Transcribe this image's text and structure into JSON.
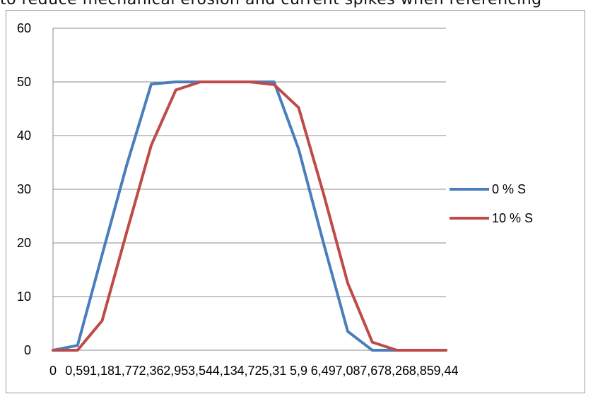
{
  "top_text": "to reduce mechanical erosion and current spikes when referencing",
  "chart_data": {
    "type": "line",
    "title": "",
    "xlabel": "",
    "ylabel": "",
    "ylim": [
      0,
      60
    ],
    "yticks": [
      0,
      10,
      20,
      30,
      40,
      50,
      60
    ],
    "grid": true,
    "legend_position": "right",
    "x_tick_labels": [
      "0",
      "0,59",
      "1,18",
      "1,77",
      "2,36",
      "2,95",
      "3,54",
      "4,13",
      "4,72",
      "5,31",
      "5,9",
      "6,49",
      "7,08",
      "7,67",
      "8,26",
      "8,85",
      "9,44"
    ],
    "x": [
      0,
      0.59,
      1.18,
      1.77,
      2.36,
      2.95,
      3.54,
      4.13,
      4.72,
      5.31,
      5.9,
      6.49,
      7.08,
      7.67,
      8.26,
      8.85,
      9.44
    ],
    "series": [
      {
        "name": "0 % S",
        "color": "#4a7ebb",
        "values": [
          0,
          0.9,
          17.8,
          34.5,
          49.6,
          50,
          50,
          50,
          50,
          50,
          37.5,
          20.2,
          3.5,
          0,
          0,
          0,
          0
        ]
      },
      {
        "name": "10 % S",
        "color": "#be4b48",
        "values": [
          0,
          0,
          5.5,
          22,
          38.2,
          48.5,
          50,
          50,
          50,
          49.5,
          45.2,
          29.4,
          12.5,
          1.5,
          0,
          0,
          0
        ]
      }
    ]
  }
}
